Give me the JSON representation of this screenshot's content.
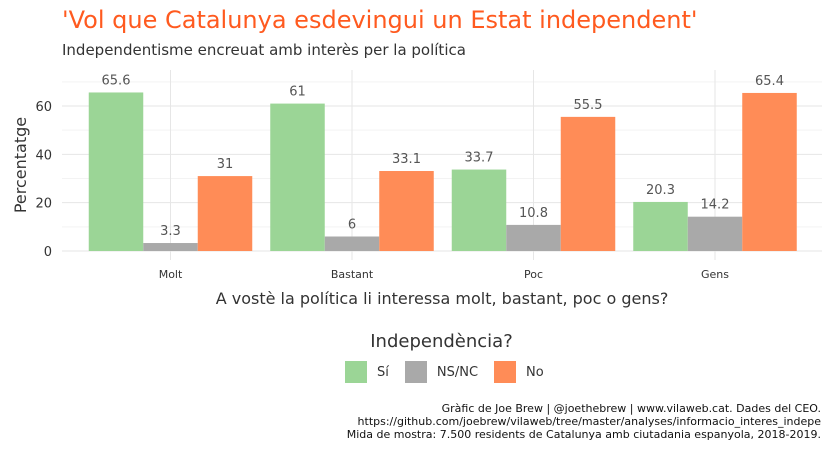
{
  "header": {
    "title": "'Vol que Catalunya esdevingui un Estat independent'",
    "subtitle": "Independentisme encreuat amb interès per la política"
  },
  "chart_data": {
    "type": "bar",
    "title": "'Vol que Catalunya esdevingui un Estat independent'",
    "subtitle": "Independentisme encreuat amb interès per la política",
    "xlabel": "A vostè la política li interessa molt, bastant, poc o gens?",
    "ylabel": "Percentatge",
    "categories": [
      "Molt",
      "Bastant",
      "Poc",
      "Gens"
    ],
    "series": [
      {
        "name": "Sí",
        "color": "#9bd596",
        "values": [
          65.6,
          61,
          33.7,
          20.3
        ]
      },
      {
        "name": "NS/NC",
        "color": "#a9a9a9",
        "values": [
          3.3,
          6,
          10.8,
          14.2
        ]
      },
      {
        "name": "No",
        "color": "#ff8c57",
        "values": [
          31,
          33.1,
          55.5,
          65.4
        ]
      }
    ],
    "value_labels": [
      [
        "65.6",
        "61",
        "33.7",
        "20.3"
      ],
      [
        "3.3",
        "6",
        "10.8",
        "14.2"
      ],
      [
        "31",
        "33.1",
        "55.5",
        "65.4"
      ]
    ],
    "yticks": [
      0,
      20,
      40,
      60
    ],
    "ytick_labels": [
      "0",
      "20",
      "40",
      "60"
    ],
    "ylim": [
      0,
      73
    ],
    "grid": true,
    "legend_title": "Independència?",
    "legend_position": "bottom"
  },
  "caption": {
    "line1": "Gràfic de Joe Brew | @joethebrew | www.vilaweb.cat. Dades del CEO.",
    "line2": "https://github.com/joebrew/vilaweb/tree/master/analyses/informacio_interes_indepe",
    "line3": "Mida de mostra: 7.500 residents de Catalunya amb ciutadania espanyola, 2018-2019."
  }
}
